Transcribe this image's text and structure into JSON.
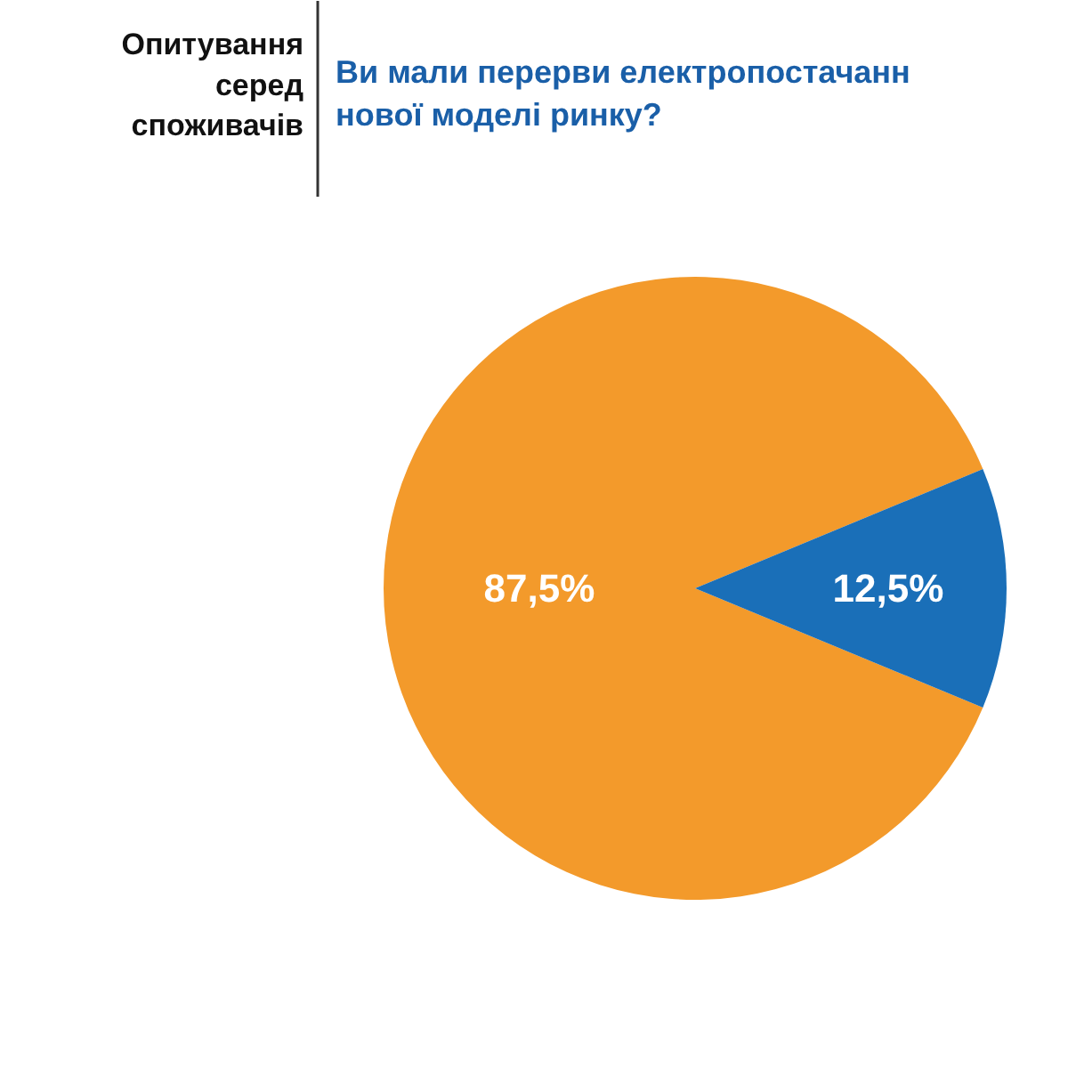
{
  "chart_data": {
    "type": "pie",
    "title": "Ви мали перерви електропостачанн\nнової моделі ринку?",
    "subtitle": "Опитування\nсеред\nспоживачів",
    "categories": [
      null,
      null
    ],
    "values": [
      87.5,
      12.5
    ],
    "colors": [
      "#f39a2b",
      "#1a6fb8"
    ],
    "value_labels": [
      "87,5%",
      "12,5%"
    ]
  }
}
